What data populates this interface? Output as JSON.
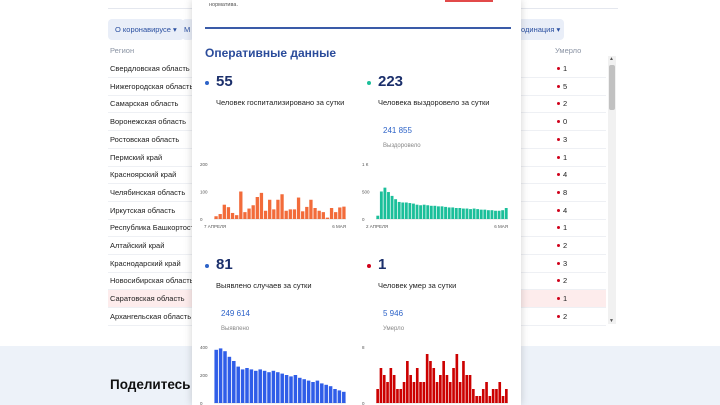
{
  "background": {
    "note_line": "нормативa.",
    "chips": [
      {
        "label": "О коронавирусе ▾"
      },
      {
        "label": "М"
      },
      {
        "label": "одинация ▾"
      }
    ],
    "table": {
      "col_region": "Регион",
      "col_died": "Умерло",
      "rows": [
        {
          "region": "Свердловская область",
          "died": "1"
        },
        {
          "region": "Нижегородская область",
          "died": "5"
        },
        {
          "region": "Самарская область",
          "died": "2"
        },
        {
          "region": "Воронежская область",
          "died": "0"
        },
        {
          "region": "Ростовская область",
          "died": "3"
        },
        {
          "region": "Пермский край",
          "died": "1"
        },
        {
          "region": "Красноярский край",
          "died": "4"
        },
        {
          "region": "Челябинская область",
          "died": "8"
        },
        {
          "region": "Иркутская область",
          "died": "4"
        },
        {
          "region": "Республика Башкортостан",
          "died": "1"
        },
        {
          "region": "Алтайский край",
          "died": "2"
        },
        {
          "region": "Краснодарский край",
          "died": "3"
        },
        {
          "region": "Новосибирская область",
          "died": "2"
        },
        {
          "region": "Саратовская область",
          "died": "1",
          "highlighted": true
        },
        {
          "region": "Архангельская область",
          "died": "2"
        }
      ]
    },
    "share_title": "Поделитесь в социальн"
  },
  "card": {
    "title": "Оперативные данные",
    "stats": [
      {
        "id": "hospitalized",
        "value": "55",
        "label": "Человек госпитализировано за сутки",
        "color": "#2d63c8"
      },
      {
        "id": "recovered",
        "value": "223",
        "label": "Человека выздоровело за сутки",
        "total": "241 855",
        "total_label": "Выздоровело",
        "color": "#1bbf9a"
      },
      {
        "id": "cases",
        "value": "81",
        "label": "Выявлено случаев за сутки",
        "total": "249 614",
        "total_label": "Выявлено",
        "color": "#2d63c8"
      },
      {
        "id": "deaths",
        "value": "1",
        "label": "Человек умер за сутки",
        "total": "5 946",
        "total_label": "Умерло",
        "color": "#d0021b"
      }
    ]
  },
  "chart_data": [
    {
      "type": "bar",
      "color": "#f26b3a",
      "ylim": [
        0,
        200
      ],
      "y_ticks": [
        "200",
        "100",
        "0"
      ],
      "x_start_label": "7 АПРЕЛЯ",
      "x_end_label": "6 МАЯ",
      "values": [
        10,
        18,
        52,
        43,
        22,
        14,
        100,
        25,
        38,
        50,
        80,
        95,
        30,
        70,
        35,
        70,
        90,
        30,
        35,
        35,
        78,
        28,
        44,
        70,
        40,
        30,
        25,
        5,
        40,
        25,
        42,
        45
      ]
    },
    {
      "type": "bar",
      "color": "#1bbf9a",
      "ylim": [
        0,
        1000
      ],
      "y_ticks": [
        "1 К",
        "500",
        "0"
      ],
      "x_start_label": "2 АПРЕЛЯ",
      "x_end_label": "6 МАЯ",
      "values": [
        60,
        500,
        570,
        490,
        420,
        360,
        310,
        300,
        300,
        290,
        280,
        260,
        250,
        260,
        250,
        240,
        240,
        230,
        230,
        220,
        210,
        210,
        200,
        200,
        190,
        190,
        180,
        190,
        180,
        170,
        170,
        160,
        160,
        150,
        150,
        160,
        200
      ]
    },
    {
      "type": "bar",
      "color": "#2f5de8",
      "ylim": [
        0,
        400
      ],
      "y_ticks": [
        "400",
        "200",
        "0"
      ],
      "values": [
        380,
        390,
        370,
        330,
        300,
        260,
        240,
        250,
        240,
        230,
        240,
        230,
        220,
        230,
        220,
        210,
        200,
        190,
        200,
        180,
        170,
        160,
        150,
        160,
        140,
        130,
        120,
        100,
        90,
        80
      ]
    },
    {
      "type": "bar",
      "color": "#cc0000",
      "ylim": [
        0,
        8
      ],
      "y_ticks": [
        "8",
        "",
        "0"
      ],
      "values": [
        2,
        5,
        4,
        3,
        5,
        4,
        2,
        2,
        3,
        6,
        4,
        3,
        5,
        3,
        3,
        7,
        6,
        5,
        3,
        4,
        6,
        4,
        3,
        5,
        7,
        3,
        6,
        4,
        4,
        2,
        1,
        1,
        2,
        3,
        1,
        2,
        2,
        3,
        1,
        2
      ]
    }
  ]
}
